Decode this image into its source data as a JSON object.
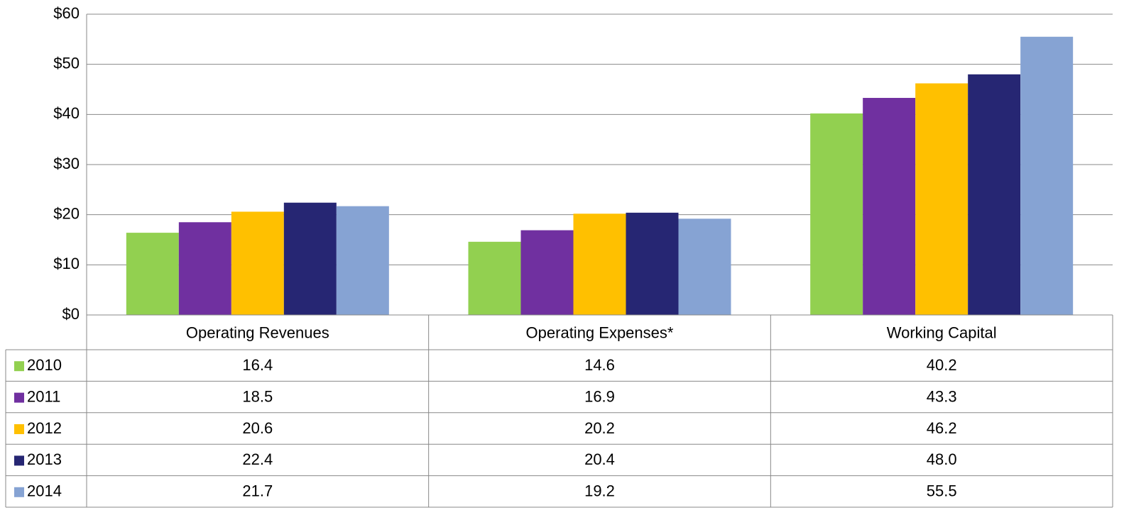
{
  "chart_data": {
    "type": "bar",
    "categories": [
      "Operating Revenues",
      "Operating Expenses*",
      "Working Capital"
    ],
    "series": [
      {
        "name": "2010",
        "color": "#92d050",
        "values": [
          16.4,
          14.6,
          40.2
        ],
        "value_labels": [
          "16.4",
          "14.6",
          "40.2"
        ]
      },
      {
        "name": "2011",
        "color": "#7030a0",
        "values": [
          18.5,
          16.9,
          43.3
        ],
        "value_labels": [
          "18.5",
          "16.9",
          "43.3"
        ]
      },
      {
        "name": "2012",
        "color": "#ffc000",
        "values": [
          20.6,
          20.2,
          46.2
        ],
        "value_labels": [
          "20.6",
          "20.2",
          "46.2"
        ]
      },
      {
        "name": "2013",
        "color": "#262673",
        "values": [
          22.4,
          20.4,
          48
        ],
        "value_labels": [
          "22.4",
          "20.4",
          "48.0"
        ]
      },
      {
        "name": "2014",
        "color": "#86a3d3",
        "values": [
          21.7,
          19.2,
          55.5
        ],
        "value_labels": [
          "21.7",
          "19.2",
          "55.5"
        ]
      }
    ],
    "ylim": [
      0,
      60
    ],
    "yticks": [
      {
        "value": 0,
        "label": "$0"
      },
      {
        "value": 10,
        "label": "$10"
      },
      {
        "value": 20,
        "label": "$20"
      },
      {
        "value": 30,
        "label": "$30"
      },
      {
        "value": 40,
        "label": "$40"
      },
      {
        "value": 50,
        "label": "$50"
      },
      {
        "value": 60,
        "label": "$60"
      }
    ],
    "grid": true
  }
}
